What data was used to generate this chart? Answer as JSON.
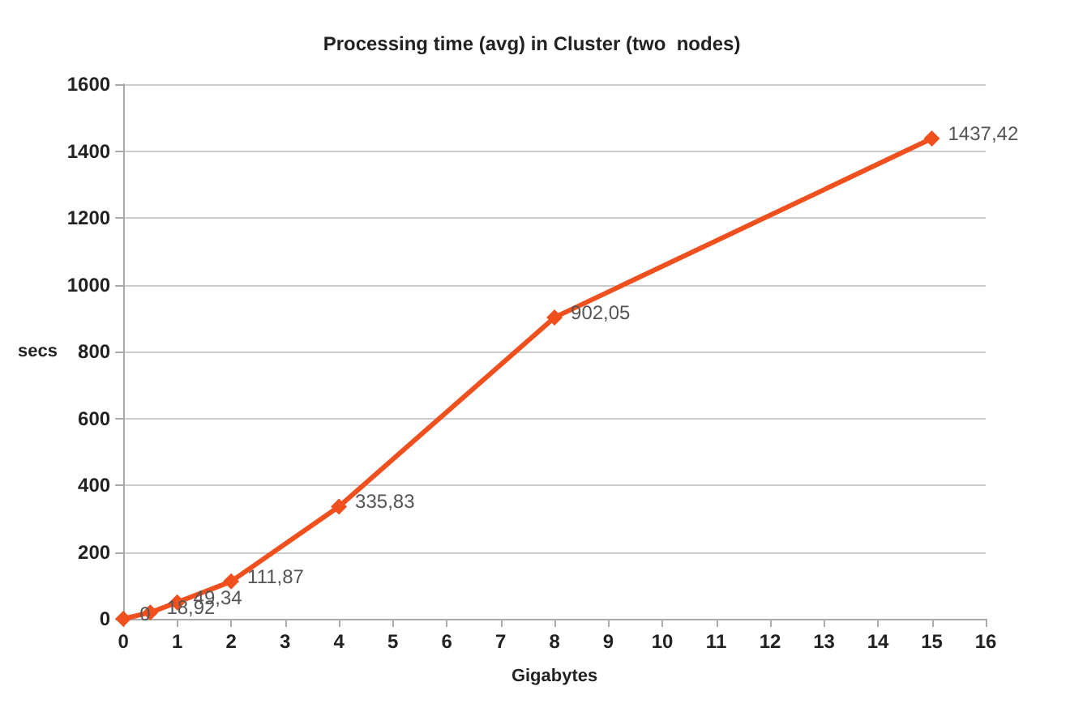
{
  "chart_data": {
    "type": "line",
    "title": "Processing time (avg) in Cluster (two  nodes)",
    "xlabel": "Gigabytes",
    "ylabel": "secs",
    "x": [
      0,
      0.5,
      1,
      2,
      4,
      8,
      15
    ],
    "series": [
      {
        "color": "#f0501e",
        "values": [
          0,
          18.92,
          49.34,
          111.87,
          335.83,
          902.05,
          1437.42
        ],
        "value_labels": [
          "0",
          "18,92",
          "49,34",
          "111,87",
          "335,83",
          "902,05",
          "1437,42"
        ]
      }
    ],
    "xlim": [
      0,
      16
    ],
    "xticks": [
      0,
      1,
      2,
      3,
      4,
      5,
      6,
      7,
      8,
      9,
      10,
      11,
      12,
      13,
      14,
      15,
      16
    ],
    "ylim": [
      0,
      1600
    ],
    "yticks": [
      0,
      200,
      400,
      600,
      800,
      1000,
      1200,
      1400,
      1600
    ],
    "grid": "y",
    "marker": "diamond",
    "line_style": "solid"
  }
}
